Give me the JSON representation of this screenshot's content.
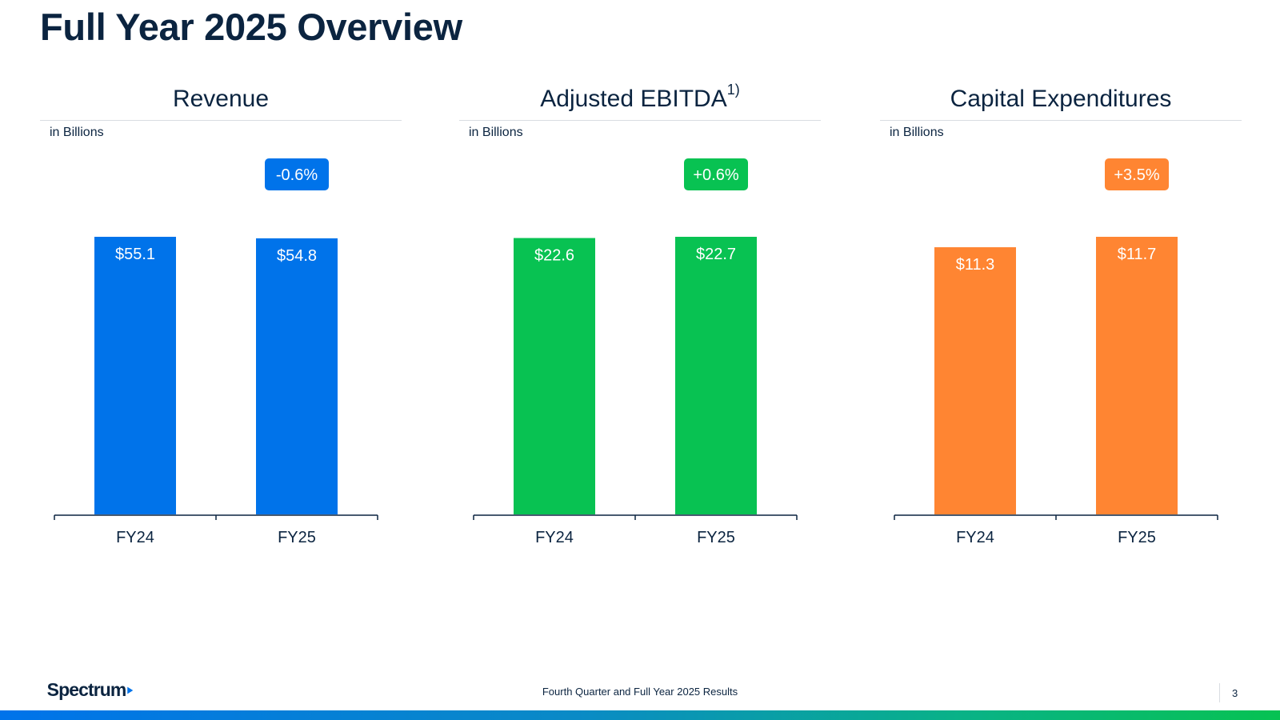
{
  "page": {
    "title": "Full Year 2025 Overview"
  },
  "chart_data": [
    {
      "type": "bar",
      "title": "Revenue",
      "title_sup": "",
      "subtitle": "in Billions",
      "categories": [
        "FY24",
        "FY25"
      ],
      "values": [
        55.1,
        54.8
      ],
      "value_labels": [
        "$55.1",
        "$54.8"
      ],
      "change_label": "-0.6%",
      "color": "#0073ea"
    },
    {
      "type": "bar",
      "title": "Adjusted EBITDA",
      "title_sup": "1)",
      "subtitle": "in Billions",
      "categories": [
        "FY24",
        "FY25"
      ],
      "values": [
        22.6,
        22.7
      ],
      "value_labels": [
        "$22.6",
        "$22.7"
      ],
      "change_label": "+0.6%",
      "color": "#08c252"
    },
    {
      "type": "bar",
      "title": "Capital Expenditures",
      "title_sup": "",
      "subtitle": "in Billions",
      "categories": [
        "FY24",
        "FY25"
      ],
      "values": [
        11.3,
        11.7
      ],
      "value_labels": [
        "$11.3",
        "$11.7"
      ],
      "change_label": "+3.5%",
      "color": "#ff8532"
    }
  ],
  "footer": {
    "logo_text": "Spectrum",
    "text": "Fourth Quarter and Full Year 2025 Results",
    "page_number": "3"
  },
  "colors": {
    "text": "#0b2440",
    "brand_blue": "#0073ea",
    "green": "#08c252",
    "orange": "#ff8532"
  }
}
